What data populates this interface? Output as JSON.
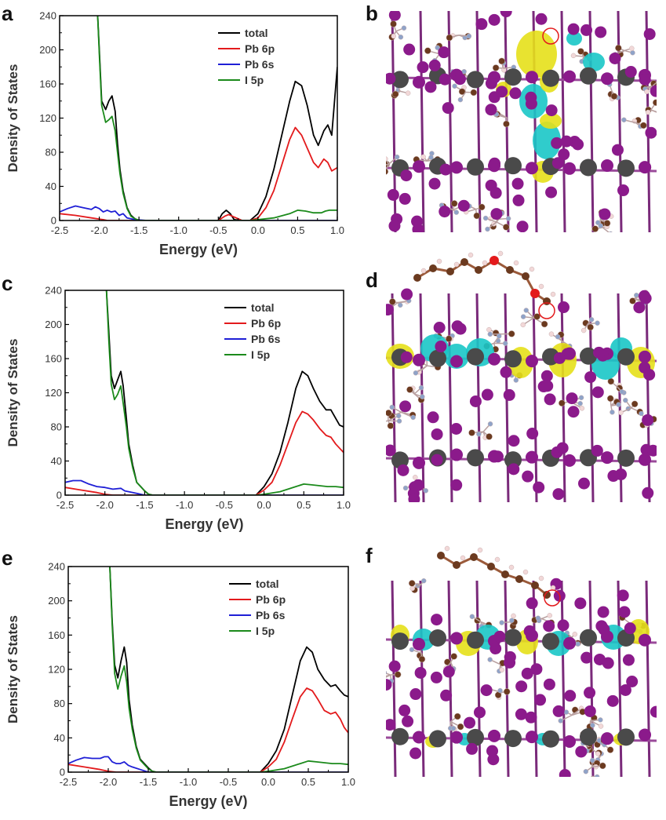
{
  "panel_letters": [
    "a",
    "b",
    "c",
    "d",
    "e",
    "f"
  ],
  "colors": {
    "total": "#000000",
    "Pb 6p": "#e31a1c",
    "Pb 6s": "#1f1fd6",
    "I 5p": "#1b8a1b",
    "iodine_atom": "#8b1a8b",
    "lead_atom": "#4a4a4a",
    "carbon_atom": "#6b3a1f",
    "nitrogen_atom": "#8fa3c8",
    "hydrogen_atom": "#f2d8d8",
    "oxygen_atom": "#e31a1c",
    "isosurface_positive": "#e6e01a",
    "isosurface_negative": "#19c6c6"
  },
  "chart_data": [
    {
      "type": "line",
      "panel": "a",
      "xlabel": "Energy (eV)",
      "ylabel": "Density of States",
      "xlim": [
        -2.5,
        1.0
      ],
      "ylim": [
        0,
        240
      ],
      "xticks": [
        -2.5,
        -2.0,
        -1.5,
        -1.0,
        -0.5,
        0.0,
        0.5,
        1.0
      ],
      "xtick_labels": [
        "-2.5",
        "-2.0",
        "-1.5",
        "-1.0",
        "-0.5",
        "0.0",
        "0.5",
        "1.0"
      ],
      "yticks": [
        0,
        40,
        80,
        120,
        160,
        200,
        240
      ],
      "ytick_labels": [
        "0",
        "40",
        "80",
        "120",
        "160",
        "200",
        "240"
      ],
      "legend": "top-right",
      "series": [
        {
          "name": "total",
          "x": [
            -2.02,
            -2.0,
            -1.97,
            -1.92,
            -1.88,
            -1.84,
            -1.8,
            -1.77,
            -1.74,
            -1.7,
            -1.65,
            -1.6,
            -1.55,
            -1.5,
            -1.45,
            -1.4,
            -1.3,
            -0.5,
            -0.45,
            -0.4,
            -0.35,
            -0.3,
            -0.2,
            -0.1,
            0.0,
            0.1,
            0.2,
            0.3,
            0.4,
            0.47,
            0.55,
            0.62,
            0.7,
            0.76,
            0.83,
            0.88,
            0.93,
            1.0
          ],
          "values": [
            240,
            200,
            140,
            130,
            140,
            146,
            128,
            90,
            60,
            35,
            15,
            6,
            2,
            0,
            0,
            0,
            0,
            0,
            8,
            12,
            8,
            1,
            0,
            0,
            8,
            28,
            60,
            100,
            140,
            163,
            158,
            135,
            100,
            88,
            105,
            112,
            100,
            180
          ]
        },
        {
          "name": "Pb 6p",
          "x": [
            -2.5,
            -2.3,
            -2.1,
            -1.95,
            -1.9,
            -1.8,
            -1.6,
            -1.45,
            -1.3,
            -0.5,
            -0.42,
            -0.37,
            -0.3,
            -0.2,
            -0.1,
            0.0,
            0.1,
            0.2,
            0.3,
            0.4,
            0.47,
            0.55,
            0.62,
            0.7,
            0.76,
            0.83,
            0.88,
            0.93,
            1.0
          ],
          "values": [
            8,
            6,
            3,
            1,
            0,
            0,
            0,
            0,
            0,
            0,
            5,
            7,
            4,
            0,
            0,
            3,
            15,
            35,
            65,
            95,
            109,
            100,
            85,
            68,
            62,
            72,
            68,
            58,
            62
          ]
        },
        {
          "name": "Pb 6s",
          "x": [
            -2.5,
            -2.4,
            -2.3,
            -2.2,
            -2.1,
            -2.05,
            -2.0,
            -1.95,
            -1.9,
            -1.85,
            -1.8,
            -1.75,
            -1.7,
            -1.65,
            -1.55,
            -1.4,
            1.0
          ],
          "values": [
            10,
            14,
            17,
            15,
            13,
            16,
            14,
            10,
            12,
            10,
            11,
            6,
            8,
            3,
            1,
            0,
            0
          ]
        },
        {
          "name": "I 5p",
          "x": [
            -2.02,
            -2.0,
            -1.97,
            -1.92,
            -1.88,
            -1.84,
            -1.8,
            -1.77,
            -1.74,
            -1.7,
            -1.65,
            -1.6,
            -1.55,
            -1.5,
            -1.45,
            -1.4,
            -0.1,
            0.0,
            0.2,
            0.4,
            0.5,
            0.6,
            0.7,
            0.8,
            0.85,
            0.9,
            1.0
          ],
          "values": [
            240,
            195,
            135,
            115,
            118,
            122,
            105,
            80,
            55,
            32,
            14,
            5,
            2,
            0,
            0,
            0,
            0,
            1,
            3,
            8,
            12,
            11,
            9,
            9,
            11,
            12,
            12
          ]
        }
      ]
    },
    {
      "type": "line",
      "panel": "c",
      "xlabel": "Energy (eV)",
      "ylabel": "Density of States",
      "xlim": [
        -2.5,
        1.0
      ],
      "ylim": [
        0,
        240
      ],
      "xticks": [
        -2.5,
        -2.0,
        -1.5,
        -1.0,
        -0.5,
        0.0,
        0.5,
        1.0
      ],
      "xtick_labels": [
        "-2.5",
        "-2.0",
        "-1.5",
        "-1.0",
        "-0.5",
        "0.0",
        "0.5",
        "1.0"
      ],
      "yticks": [
        0,
        40,
        80,
        120,
        160,
        200,
        240
      ],
      "ytick_labels": [
        "0",
        "40",
        "80",
        "120",
        "160",
        "200",
        "240"
      ],
      "legend": "top-right",
      "series": [
        {
          "name": "total",
          "x": [
            -1.98,
            -1.95,
            -1.92,
            -1.88,
            -1.84,
            -1.8,
            -1.77,
            -1.73,
            -1.7,
            -1.65,
            -1.6,
            -1.55,
            -1.5,
            -1.45,
            -1.4,
            -0.1,
            0.0,
            0.1,
            0.2,
            0.3,
            0.4,
            0.48,
            0.55,
            0.62,
            0.7,
            0.78,
            0.84,
            0.9,
            0.95,
            1.0
          ],
          "values": [
            240,
            190,
            140,
            125,
            135,
            145,
            128,
            90,
            60,
            35,
            15,
            10,
            5,
            1,
            0,
            0,
            10,
            25,
            50,
            85,
            125,
            145,
            140,
            125,
            110,
            100,
            100,
            90,
            82,
            80
          ]
        },
        {
          "name": "Pb 6p",
          "x": [
            -2.5,
            -2.3,
            -2.1,
            -2.0,
            -1.9,
            -1.7,
            -1.5,
            -0.1,
            0.0,
            0.1,
            0.2,
            0.3,
            0.4,
            0.48,
            0.55,
            0.62,
            0.7,
            0.78,
            0.84,
            0.9,
            0.95,
            1.0
          ],
          "values": [
            9,
            6,
            3,
            1,
            0,
            0,
            0,
            0,
            6,
            15,
            35,
            60,
            85,
            98,
            95,
            88,
            78,
            70,
            68,
            60,
            55,
            50
          ]
        },
        {
          "name": "Pb 6s",
          "x": [
            -2.5,
            -2.4,
            -2.3,
            -2.2,
            -2.1,
            -2.0,
            -1.9,
            -1.8,
            -1.75,
            -1.7,
            -1.6,
            -1.5,
            1.0
          ],
          "values": [
            15,
            17,
            17,
            13,
            10,
            9,
            7,
            8,
            5,
            4,
            2,
            0,
            0
          ]
        },
        {
          "name": "I 5p",
          "x": [
            -1.98,
            -1.95,
            -1.92,
            -1.88,
            -1.84,
            -1.8,
            -1.77,
            -1.73,
            -1.7,
            -1.65,
            -1.6,
            -1.55,
            -1.5,
            -1.45,
            -1.4,
            -0.1,
            0.0,
            0.2,
            0.4,
            0.5,
            0.6,
            0.7,
            0.8,
            0.9,
            1.0
          ],
          "values": [
            240,
            180,
            130,
            112,
            118,
            128,
            108,
            80,
            55,
            32,
            15,
            10,
            5,
            1,
            0,
            0,
            1,
            4,
            10,
            13,
            12,
            11,
            10,
            10,
            9
          ]
        }
      ]
    },
    {
      "type": "line",
      "panel": "e",
      "xlabel": "Energy (eV)",
      "ylabel": "Density of States",
      "xlim": [
        -2.5,
        1.0
      ],
      "ylim": [
        0,
        240
      ],
      "xticks": [
        -2.5,
        -2.0,
        -1.5,
        -1.0,
        -0.5,
        0.0,
        0.5,
        1.0
      ],
      "xtick_labels": [
        "-2.5",
        "-2.0",
        "-1.5",
        "-1.0",
        "-0.5",
        "0.0",
        "0.5",
        "1.0"
      ],
      "yticks": [
        0,
        40,
        80,
        120,
        160,
        200,
        240
      ],
      "ytick_labels": [
        "0",
        "40",
        "80",
        "120",
        "160",
        "200",
        "240"
      ],
      "legend": "top-right",
      "series": [
        {
          "name": "total",
          "x": [
            -1.98,
            -1.95,
            -1.92,
            -1.88,
            -1.84,
            -1.8,
            -1.77,
            -1.74,
            -1.7,
            -1.65,
            -1.6,
            -1.55,
            -1.5,
            -1.45,
            -1.4,
            -0.1,
            0.0,
            0.1,
            0.2,
            0.3,
            0.4,
            0.48,
            0.55,
            0.62,
            0.7,
            0.78,
            0.84,
            0.9,
            0.95,
            1.0
          ],
          "values": [
            240,
            175,
            125,
            110,
            130,
            146,
            128,
            85,
            55,
            30,
            15,
            10,
            5,
            1,
            0,
            0,
            10,
            25,
            50,
            90,
            130,
            146,
            140,
            120,
            108,
            100,
            102,
            95,
            90,
            88
          ]
        },
        {
          "name": "Pb 6p",
          "x": [
            -2.5,
            -2.3,
            -2.1,
            -2.0,
            -1.9,
            -1.7,
            -1.5,
            -0.1,
            0.0,
            0.1,
            0.2,
            0.3,
            0.4,
            0.48,
            0.55,
            0.62,
            0.7,
            0.78,
            0.84,
            0.9,
            0.95,
            1.0
          ],
          "values": [
            9,
            6,
            3,
            1,
            0,
            0,
            0,
            0,
            6,
            15,
            35,
            62,
            88,
            98,
            95,
            85,
            72,
            68,
            70,
            62,
            52,
            46
          ]
        },
        {
          "name": "Pb 6s",
          "x": [
            -2.5,
            -2.4,
            -2.3,
            -2.2,
            -2.1,
            -2.05,
            -2.0,
            -1.95,
            -1.9,
            -1.85,
            -1.8,
            -1.75,
            -1.7,
            -1.6,
            -1.5,
            1.0
          ],
          "values": [
            10,
            14,
            17,
            16,
            16,
            18,
            18,
            12,
            10,
            10,
            12,
            8,
            6,
            3,
            0,
            0
          ]
        },
        {
          "name": "I 5p",
          "x": [
            -1.98,
            -1.95,
            -1.92,
            -1.88,
            -1.84,
            -1.8,
            -1.77,
            -1.74,
            -1.7,
            -1.65,
            -1.6,
            -1.55,
            -1.5,
            -1.45,
            -1.4,
            -0.1,
            0.0,
            0.2,
            0.4,
            0.5,
            0.6,
            0.7,
            0.8,
            0.9,
            1.0
          ],
          "values": [
            240,
            170,
            115,
            97,
            112,
            124,
            105,
            75,
            50,
            28,
            14,
            9,
            4,
            1,
            0,
            0,
            1,
            4,
            10,
            13,
            12,
            11,
            10,
            10,
            9
          ]
        }
      ]
    }
  ]
}
